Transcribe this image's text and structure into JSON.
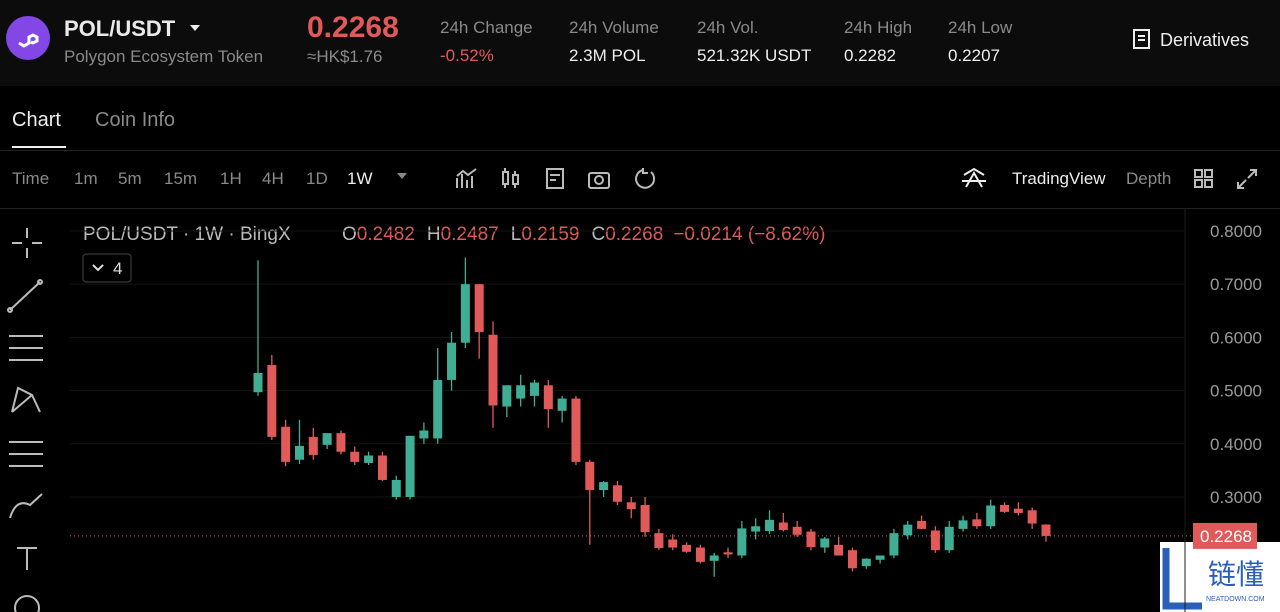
{
  "header": {
    "symbol": "POL/USDT",
    "name": "Polygon Ecosystem Token",
    "price": "0.2268",
    "fiat": "≈HK$1.76",
    "stats": [
      {
        "label": "24h Change",
        "value": "-0.52%"
      },
      {
        "label": "24h Volume",
        "value": "2.3M POL"
      },
      {
        "label": "24h Vol.",
        "value": "521.32K USDT"
      },
      {
        "label": "24h High",
        "value": "0.2282"
      },
      {
        "label": "24h Low",
        "value": "0.2207"
      }
    ],
    "derivatives": "Derivatives"
  },
  "tabs": [
    "Chart",
    "Coin Info"
  ],
  "toolbar": {
    "intervals": [
      "Time",
      "1m",
      "5m",
      "15m",
      "1H",
      "4H",
      "1D",
      "1W"
    ],
    "tradingview": "TradingView",
    "depth": "Depth"
  },
  "legend": {
    "title": "POL/USDT · 1W · BingX",
    "items": [
      {
        "key": "O",
        "value": "0.2482"
      },
      {
        "key": "H",
        "value": "0.2487"
      },
      {
        "key": "L",
        "value": "0.2159"
      },
      {
        "key": "C",
        "value": "0.2268"
      }
    ],
    "change": "−0.0214 (−8.62%)",
    "indicators": "4"
  },
  "watermark": {
    "text": "链懂",
    "sub": "NEATDOWN.COM"
  },
  "chart_data": {
    "type": "candlestick",
    "open": [
      0.497,
      0.548,
      0.432,
      0.37,
      0.413,
      0.398,
      0.42,
      0.385,
      0.364,
      0.378,
      0.3,
      0.3,
      0.41,
      0.41,
      0.52,
      0.59,
      0.7,
      0.605,
      0.47,
      0.485,
      0.49,
      0.51,
      0.462,
      0.485,
      0.366,
      0.313,
      0.322,
      0.29,
      0.285,
      0.232,
      0.22,
      0.21,
      0.205,
      0.18,
      0.196,
      0.19,
      0.235,
      0.236,
      0.252,
      0.244,
      0.235,
      0.205,
      0.21,
      0.2,
      0.17,
      0.182,
      0.19,
      0.228,
      0.255,
      0.237,
      0.2,
      0.24,
      0.258,
      0.245,
      0.285,
      0.278,
      0.275,
      0.2482
    ],
    "high": [
      0.745,
      0.567,
      0.445,
      0.445,
      0.43,
      0.42,
      0.425,
      0.395,
      0.385,
      0.385,
      0.34,
      0.41,
      0.44,
      0.58,
      0.61,
      0.75,
      0.7,
      0.63,
      0.51,
      0.53,
      0.52,
      0.52,
      0.49,
      0.49,
      0.37,
      0.33,
      0.33,
      0.3,
      0.3,
      0.24,
      0.23,
      0.215,
      0.21,
      0.195,
      0.205,
      0.255,
      0.26,
      0.275,
      0.27,
      0.255,
      0.24,
      0.225,
      0.225,
      0.205,
      0.185,
      0.19,
      0.24,
      0.255,
      0.265,
      0.245,
      0.255,
      0.265,
      0.27,
      0.295,
      0.29,
      0.29,
      0.28,
      0.2487
    ],
    "low": [
      0.49,
      0.407,
      0.358,
      0.362,
      0.37,
      0.39,
      0.38,
      0.36,
      0.36,
      0.33,
      0.295,
      0.295,
      0.4,
      0.4,
      0.5,
      0.58,
      0.56,
      0.43,
      0.45,
      0.47,
      0.47,
      0.43,
      0.44,
      0.36,
      0.21,
      0.3,
      0.285,
      0.26,
      0.225,
      0.2,
      0.2,
      0.195,
      0.175,
      0.15,
      0.185,
      0.185,
      0.22,
      0.23,
      0.235,
      0.225,
      0.2,
      0.195,
      0.19,
      0.16,
      0.165,
      0.175,
      0.185,
      0.22,
      0.24,
      0.195,
      0.195,
      0.235,
      0.24,
      0.24,
      0.27,
      0.265,
      0.24,
      0.2159
    ],
    "close": [
      0.533,
      0.413,
      0.366,
      0.396,
      0.379,
      0.42,
      0.385,
      0.366,
      0.378,
      0.332,
      0.332,
      0.415,
      0.425,
      0.52,
      0.59,
      0.7,
      0.61,
      0.472,
      0.51,
      0.51,
      0.515,
      0.465,
      0.485,
      0.366,
      0.313,
      0.328,
      0.291,
      0.277,
      0.234,
      0.204,
      0.205,
      0.197,
      0.178,
      0.19,
      0.192,
      0.241,
      0.245,
      0.257,
      0.238,
      0.229,
      0.206,
      0.222,
      0.19,
      0.166,
      0.184,
      0.19,
      0.232,
      0.248,
      0.24,
      0.2,
      0.244,
      0.256,
      0.245,
      0.284,
      0.272,
      0.27,
      0.25,
      0.2268
    ],
    "up_color": "#3fae94",
    "down_color": "#e05a5a",
    "last": 0.2268,
    "last_label": "0.2268",
    "ylim": [
      0.0838,
      0.8432
    ],
    "yticks": [
      {
        "value": 0.8,
        "label": "0.8000"
      },
      {
        "value": 0.7,
        "label": "0.7000"
      },
      {
        "value": 0.6,
        "label": "0.6000"
      },
      {
        "value": 0.5,
        "label": "0.5000"
      },
      {
        "value": 0.4,
        "label": "0.4000"
      },
      {
        "value": 0.3,
        "label": "0.3000"
      }
    ]
  }
}
